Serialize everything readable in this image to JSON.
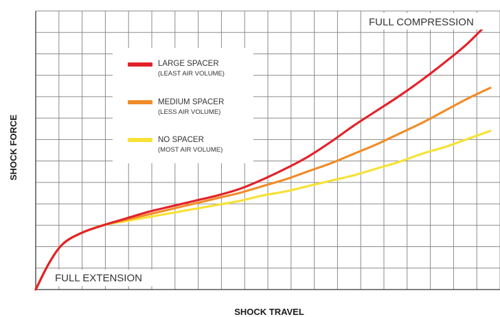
{
  "chart_data": {
    "type": "line",
    "xlabel": "SHOCK TRAVEL",
    "ylabel": "SHOCK FORCE",
    "xlim": [
      0,
      100
    ],
    "ylim": [
      0,
      100
    ],
    "grid": true,
    "legend_position": "top-left",
    "annotations": {
      "full_compression": "FULL COMPRESSION",
      "full_extension": "FULL EXTENSION"
    },
    "series": [
      {
        "name": "LARGE SPACER",
        "subtitle": "(LEAST AIR VOLUME)",
        "color": "#e2222a",
        "x": [
          0,
          3,
          6,
          10,
          15,
          20,
          25,
          30,
          35,
          40,
          45,
          50,
          55,
          60,
          65,
          70,
          75,
          80,
          85,
          90,
          95,
          100
        ],
        "y": [
          0,
          10,
          17,
          21,
          24,
          26.5,
          29,
          31,
          33,
          35,
          37.5,
          41,
          45,
          49.5,
          55,
          61,
          66.5,
          72,
          78,
          84.5,
          91.5,
          100
        ]
      },
      {
        "name": "MEDIUM SPACER",
        "subtitle": "(LESS AIR VOLUME)",
        "color": "#f08c28",
        "x": [
          0,
          3,
          6,
          10,
          15,
          20,
          25,
          30,
          35,
          40,
          45,
          50,
          55,
          60,
          65,
          70,
          75,
          80,
          85,
          90,
          95,
          100
        ],
        "y": [
          0,
          10,
          17,
          21,
          24,
          26,
          28,
          30,
          32,
          34,
          36,
          38.5,
          41,
          44,
          47,
          50.5,
          54,
          58,
          62,
          66.5,
          71,
          75
        ]
      },
      {
        "name": "NO SPACER",
        "subtitle": "(MOST AIR VOLUME)",
        "color": "#f7e135",
        "x": [
          0,
          3,
          6,
          10,
          15,
          20,
          25,
          30,
          35,
          40,
          45,
          50,
          55,
          60,
          65,
          70,
          75,
          80,
          85,
          90,
          95,
          100
        ],
        "y": [
          0,
          10,
          17,
          21,
          24,
          25.5,
          27,
          28.5,
          30,
          31.5,
          33,
          35,
          36.5,
          38.5,
          40.5,
          42.5,
          45,
          47.5,
          50.5,
          53,
          56,
          59
        ]
      }
    ]
  }
}
